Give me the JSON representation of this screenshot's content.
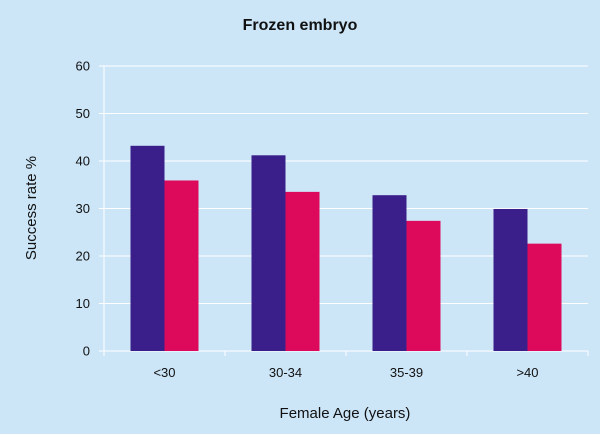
{
  "chart_data": {
    "type": "bar",
    "title": "Frozen embryo",
    "xlabel": "Female Age (years)",
    "ylabel": "Success rate %",
    "categories": [
      "<30",
      "30-34",
      "35-39",
      ">40"
    ],
    "series": [
      {
        "values": [
          43.2,
          41.2,
          32.8,
          29.9
        ],
        "color": "#3a1f8a"
      },
      {
        "values": [
          35.9,
          33.5,
          27.4,
          22.6
        ],
        "color": "#dd0a5b"
      }
    ],
    "ylim": [
      0,
      60
    ],
    "yticks": [
      "0",
      "10",
      "20",
      "30",
      "40",
      "50",
      "60"
    ],
    "grid": true,
    "background_color": "#cce6f8"
  }
}
